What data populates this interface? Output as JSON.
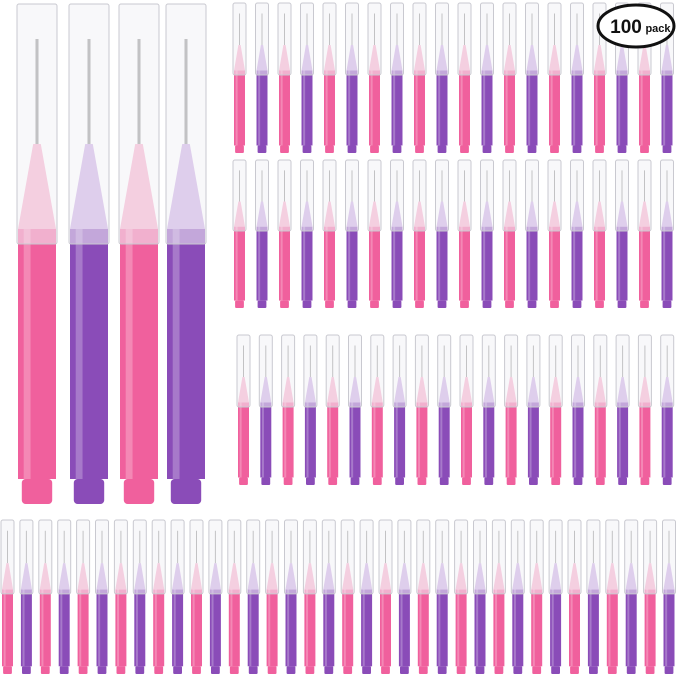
{
  "badge": {
    "count": "100",
    "label": "pack"
  }
}
